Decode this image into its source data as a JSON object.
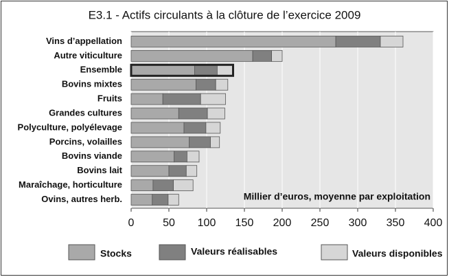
{
  "chart_data": {
    "type": "stacked-bar-horizontal",
    "title": "E3.1 - Actifs circulants à la clôture de l’exercice 2009",
    "annotation": "Millier d’euros, moyenne par exploitation",
    "categories": [
      "Vins d’appellation",
      "Autre viticulture",
      "Ensemble",
      "Bovins mixtes",
      "Fruits",
      "Grandes cultures",
      "Polyculture, polyélevage",
      "Porcins, volailles",
      "Bovins viande",
      "Bovins lait",
      "Maraîchage, horticulture",
      "Ovins, autres herb."
    ],
    "series": [
      {
        "name": "Stocks",
        "color": "#a9a9a9",
        "values": [
          271,
          161,
          84,
          86,
          42,
          63,
          70,
          77,
          57,
          50,
          29,
          28
        ]
      },
      {
        "name": "Valeurs réalisables",
        "color": "#808080",
        "values": [
          59,
          25,
          30,
          26,
          50,
          38,
          29,
          28,
          17,
          23,
          27,
          21
        ]
      },
      {
        "name": "Valeurs disponibles",
        "color": "#d6d6d6",
        "values": [
          30,
          14,
          21,
          16,
          33,
          23,
          19,
          12,
          16,
          14,
          26,
          14
        ]
      }
    ],
    "highlight": "Ensemble",
    "xlim": [
      0,
      400
    ],
    "xticks": [
      0,
      50,
      100,
      150,
      200,
      250,
      300,
      350,
      400
    ],
    "grid": true
  }
}
